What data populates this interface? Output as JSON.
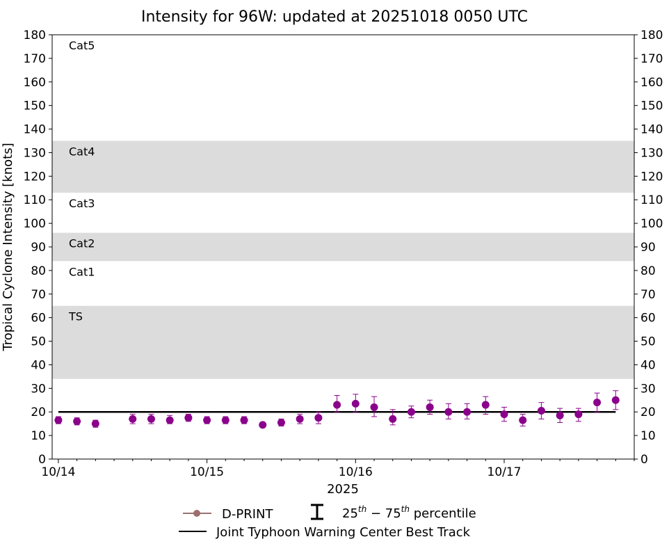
{
  "chart_data": {
    "type": "scatter",
    "title": "Intensity for 96W: updated at 20251018 0050 UTC",
    "ylabel": "Tropical Cyclone Intensity [knots]",
    "xlabel": "2025",
    "ylim": [
      0,
      180
    ],
    "yticks": [
      0,
      10,
      20,
      30,
      40,
      50,
      60,
      70,
      80,
      90,
      100,
      110,
      120,
      130,
      140,
      150,
      160,
      170,
      180
    ],
    "xlim_days": [
      "10/13 23:00",
      "10/17 21:00"
    ],
    "x_tick_labels": [
      "10/14",
      "10/15",
      "10/16",
      "10/17"
    ],
    "grid": false,
    "categories_bands": [
      {
        "label": "TS",
        "from": 34,
        "to": 65,
        "shaded": true
      },
      {
        "label": "Cat1",
        "from": 65,
        "to": 84,
        "shaded": false
      },
      {
        "label": "Cat2",
        "from": 84,
        "to": 96,
        "shaded": true
      },
      {
        "label": "Cat3",
        "from": 96,
        "to": 113,
        "shaded": false
      },
      {
        "label": "Cat4",
        "from": 113,
        "to": 135,
        "shaded": true
      },
      {
        "label": "Cat5",
        "from": 135,
        "to": 180,
        "shaded": false
      }
    ],
    "series": [
      {
        "name": "D-PRINT",
        "color": "#8b008b",
        "points": [
          {
            "x": "10/14 00:00",
            "y": 16.5,
            "p25": 15,
            "p75": 18
          },
          {
            "x": "10/14 03:00",
            "y": 16,
            "p25": 14.5,
            "p75": 17.5
          },
          {
            "x": "10/14 06:00",
            "y": 15,
            "p25": 13.5,
            "p75": 16.5
          },
          {
            "x": "10/14 12:00",
            "y": 17,
            "p25": 15,
            "p75": 19
          },
          {
            "x": "10/14 15:00",
            "y": 17,
            "p25": 15,
            "p75": 19
          },
          {
            "x": "10/14 18:00",
            "y": 16.5,
            "p25": 15,
            "p75": 18.5
          },
          {
            "x": "10/14 21:00",
            "y": 17.5,
            "p25": 16,
            "p75": 19
          },
          {
            "x": "10/15 00:00",
            "y": 16.5,
            "p25": 15,
            "p75": 18
          },
          {
            "x": "10/15 03:00",
            "y": 16.5,
            "p25": 15,
            "p75": 18
          },
          {
            "x": "10/15 06:00",
            "y": 16.5,
            "p25": 15,
            "p75": 18
          },
          {
            "x": "10/15 09:00",
            "y": 14.5,
            "p25": 14,
            "p75": 15
          },
          {
            "x": "10/15 12:00",
            "y": 15.5,
            "p25": 14,
            "p75": 17
          },
          {
            "x": "10/15 15:00",
            "y": 17,
            "p25": 15,
            "p75": 19
          },
          {
            "x": "10/15 18:00",
            "y": 17.5,
            "p25": 15,
            "p75": 20
          },
          {
            "x": "10/15 21:00",
            "y": 23,
            "p25": 20,
            "p75": 27
          },
          {
            "x": "10/16 00:00",
            "y": 23.5,
            "p25": 20,
            "p75": 27.5
          },
          {
            "x": "10/16 03:00",
            "y": 22,
            "p25": 18,
            "p75": 26.5
          },
          {
            "x": "10/16 06:00",
            "y": 17,
            "p25": 14.5,
            "p75": 21
          },
          {
            "x": "10/16 09:00",
            "y": 20,
            "p25": 17.5,
            "p75": 22.5
          },
          {
            "x": "10/16 12:00",
            "y": 22,
            "p25": 19,
            "p75": 25
          },
          {
            "x": "10/16 15:00",
            "y": 20,
            "p25": 17,
            "p75": 23.5
          },
          {
            "x": "10/16 18:00",
            "y": 20,
            "p25": 17,
            "p75": 23.5
          },
          {
            "x": "10/16 21:00",
            "y": 23,
            "p25": 19,
            "p75": 26.5
          },
          {
            "x": "10/17 00:00",
            "y": 19,
            "p25": 16,
            "p75": 22
          },
          {
            "x": "10/17 03:00",
            "y": 16.5,
            "p25": 14,
            "p75": 19
          },
          {
            "x": "10/17 06:00",
            "y": 20.5,
            "p25": 17,
            "p75": 24
          },
          {
            "x": "10/17 09:00",
            "y": 18.5,
            "p25": 15.5,
            "p75": 21.5
          },
          {
            "x": "10/17 12:00",
            "y": 19,
            "p25": 16,
            "p75": 21.5
          },
          {
            "x": "10/17 15:00",
            "y": 24,
            "p25": 20,
            "p75": 28
          },
          {
            "x": "10/17 18:00",
            "y": 25,
            "p25": 21,
            "p75": 29
          }
        ]
      },
      {
        "name": "Joint Typhoon Warning Center Best Track",
        "color": "#000000",
        "points": [
          {
            "x": "10/14 00:00",
            "y": 20
          },
          {
            "x": "10/17 18:00",
            "y": 20
          }
        ]
      }
    ],
    "legend": {
      "placement": "bottom",
      "entries": [
        "D-PRINT",
        "25th-75th percentile",
        "Joint Typhoon Warning Center Best Track"
      ],
      "dprint_line_color": "#9c7070",
      "dprint_marker_color": "#9c7070"
    },
    "band_color": "#dcdcdc"
  }
}
